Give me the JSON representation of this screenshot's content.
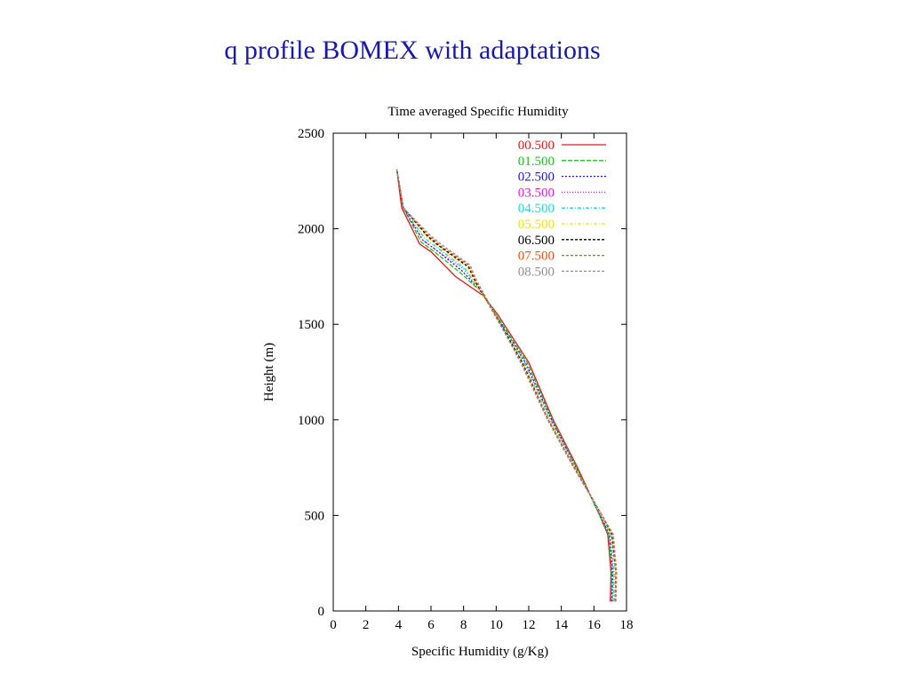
{
  "slide": {
    "title": "q profile BOMEX with adaptations"
  },
  "chart_data": {
    "type": "line",
    "title": "Time averaged Specific Humidity",
    "xlabel": "Specific Humidity (g/Kg)",
    "ylabel": "Height (m)",
    "xlim": [
      0,
      18
    ],
    "ylim": [
      0,
      2500
    ],
    "x_ticks": [
      "0",
      "2",
      "4",
      "6",
      "8",
      "10",
      "12",
      "14",
      "16",
      "18"
    ],
    "y_ticks": [
      "0",
      "500",
      "1000",
      "1500",
      "2000",
      "2500"
    ],
    "legend_position": "top-right",
    "grid": false,
    "series": [
      {
        "name": "00.500",
        "color": "#e8161b",
        "dash": "",
        "points": [
          [
            17.0,
            50
          ],
          [
            17.05,
            200
          ],
          [
            16.85,
            400
          ],
          [
            16.35,
            500
          ],
          [
            15.0,
            750
          ],
          [
            13.5,
            1000
          ],
          [
            12.0,
            1300
          ],
          [
            10.1,
            1550
          ],
          [
            9.2,
            1650
          ],
          [
            7.5,
            1750
          ],
          [
            6.0,
            1880
          ],
          [
            5.3,
            1920
          ],
          [
            4.2,
            2110
          ],
          [
            3.9,
            2310
          ]
        ]
      },
      {
        "name": "01.500",
        "color": "#20c020",
        "dash": "5,2",
        "points": [
          [
            17.05,
            50
          ],
          [
            17.1,
            200
          ],
          [
            16.9,
            400
          ],
          [
            16.35,
            500
          ],
          [
            14.95,
            750
          ],
          [
            13.45,
            1000
          ],
          [
            11.9,
            1300
          ],
          [
            10.0,
            1550
          ],
          [
            9.2,
            1660
          ],
          [
            7.8,
            1770
          ],
          [
            6.2,
            1880
          ],
          [
            5.4,
            1930
          ],
          [
            4.3,
            2110
          ],
          [
            3.9,
            2310
          ]
        ]
      },
      {
        "name": "02.500",
        "color": "#1a1ad8",
        "dash": "2,2",
        "points": [
          [
            17.1,
            50
          ],
          [
            17.15,
            200
          ],
          [
            16.95,
            400
          ],
          [
            16.4,
            500
          ],
          [
            14.9,
            750
          ],
          [
            13.4,
            1000
          ],
          [
            11.8,
            1300
          ],
          [
            9.9,
            1560
          ],
          [
            9.0,
            1680
          ],
          [
            7.9,
            1780
          ],
          [
            6.3,
            1890
          ],
          [
            5.5,
            1940
          ],
          [
            4.3,
            2110
          ],
          [
            3.9,
            2310
          ]
        ]
      },
      {
        "name": "03.500",
        "color": "#e020e0",
        "dash": "1,2",
        "points": [
          [
            17.15,
            50
          ],
          [
            17.2,
            200
          ],
          [
            17.0,
            400
          ],
          [
            16.4,
            500
          ],
          [
            14.9,
            750
          ],
          [
            13.35,
            1000
          ],
          [
            11.75,
            1300
          ],
          [
            9.9,
            1560
          ],
          [
            8.9,
            1690
          ],
          [
            8.0,
            1790
          ],
          [
            6.3,
            1890
          ],
          [
            5.5,
            1940
          ],
          [
            4.3,
            2110
          ],
          [
            3.9,
            2310
          ]
        ]
      },
      {
        "name": "04.500",
        "color": "#20d8e0",
        "dash": "4,2,1,2",
        "points": [
          [
            17.2,
            50
          ],
          [
            17.25,
            200
          ],
          [
            17.0,
            400
          ],
          [
            16.45,
            500
          ],
          [
            14.85,
            750
          ],
          [
            13.3,
            1000
          ],
          [
            11.7,
            1300
          ],
          [
            9.85,
            1570
          ],
          [
            8.8,
            1700
          ],
          [
            8.1,
            1790
          ],
          [
            6.4,
            1900
          ],
          [
            5.6,
            1950
          ],
          [
            4.3,
            2110
          ],
          [
            3.9,
            2310
          ]
        ]
      },
      {
        "name": "05.500",
        "color": "#f0e020",
        "dash": "4,2,1,2",
        "points": [
          [
            17.25,
            50
          ],
          [
            17.3,
            200
          ],
          [
            17.05,
            400
          ],
          [
            16.45,
            500
          ],
          [
            14.85,
            750
          ],
          [
            13.25,
            1000
          ],
          [
            11.65,
            1300
          ],
          [
            9.8,
            1570
          ],
          [
            8.8,
            1700
          ],
          [
            8.2,
            1800
          ],
          [
            6.5,
            1900
          ],
          [
            5.7,
            1960
          ],
          [
            4.3,
            2110
          ],
          [
            3.9,
            2310
          ]
        ]
      },
      {
        "name": "06.500",
        "color": "#000000",
        "dash": "3,2",
        "points": [
          [
            17.3,
            50
          ],
          [
            17.35,
            200
          ],
          [
            17.1,
            400
          ],
          [
            16.5,
            500
          ],
          [
            14.8,
            750
          ],
          [
            13.2,
            1000
          ],
          [
            11.6,
            1300
          ],
          [
            9.75,
            1580
          ],
          [
            8.8,
            1710
          ],
          [
            8.3,
            1800
          ],
          [
            6.5,
            1910
          ],
          [
            5.8,
            1960
          ],
          [
            4.3,
            2110
          ],
          [
            3.9,
            2310
          ]
        ]
      },
      {
        "name": "07.500",
        "color": "#f05010",
        "dash": "3,2",
        "points": [
          [
            17.3,
            50
          ],
          [
            17.35,
            200
          ],
          [
            17.15,
            400
          ],
          [
            16.5,
            500
          ],
          [
            14.8,
            750
          ],
          [
            13.2,
            1000
          ],
          [
            11.55,
            1300
          ],
          [
            9.7,
            1580
          ],
          [
            8.8,
            1720
          ],
          [
            8.3,
            1810
          ],
          [
            6.6,
            1910
          ],
          [
            5.8,
            1970
          ],
          [
            4.3,
            2110
          ],
          [
            3.9,
            2310
          ]
        ]
      },
      {
        "name": "08.500",
        "color": "#909090",
        "dash": "3,2",
        "points": [
          [
            17.35,
            50
          ],
          [
            17.4,
            200
          ],
          [
            17.2,
            400
          ],
          [
            16.5,
            500
          ],
          [
            14.75,
            750
          ],
          [
            13.15,
            1000
          ],
          [
            11.5,
            1300
          ],
          [
            9.7,
            1590
          ],
          [
            8.8,
            1730
          ],
          [
            8.4,
            1810
          ],
          [
            6.6,
            1920
          ],
          [
            5.9,
            1970
          ],
          [
            4.3,
            2110
          ],
          [
            3.9,
            2310
          ]
        ]
      }
    ]
  }
}
